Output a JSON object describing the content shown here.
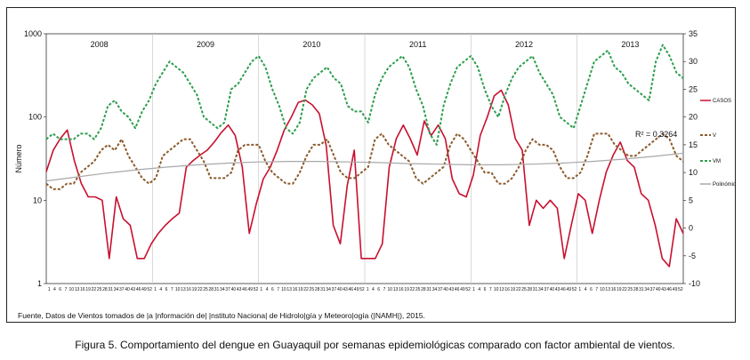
{
  "chart_data": {
    "type": "line",
    "ylabel": "Número",
    "y_left_scale": "log",
    "ylim_left": [
      1,
      1000
    ],
    "left_ticks": [
      "1",
      "10",
      "100",
      "1000"
    ],
    "ylim_right": [
      -10,
      35
    ],
    "right_ticks": [
      "-10",
      "-5",
      "0",
      "5",
      "10",
      "15",
      "20",
      "25",
      "30",
      "35"
    ],
    "years": [
      "2008",
      "2009",
      "2010",
      "2011",
      "2012",
      "2013"
    ],
    "week_ticks": "1 4 6 7 10 13 16 19 22 25 28 31 34 37 40 43 46 49 52",
    "annotation": "R² = 0,3264",
    "legend_placement": "right",
    "grid": false,
    "series": [
      {
        "name": "CASOS",
        "axis": "left",
        "color": "#c8102e",
        "style": "solid",
        "values": [
          22,
          40,
          55,
          70,
          30,
          16,
          11,
          11,
          10,
          2,
          11,
          6,
          5,
          2,
          2,
          3,
          4,
          5,
          6,
          7,
          25,
          30,
          35,
          40,
          50,
          65,
          80,
          60,
          25,
          4,
          9,
          18,
          25,
          40,
          70,
          100,
          150,
          160,
          140,
          110,
          45,
          5,
          3,
          15,
          40,
          2,
          2,
          2,
          3,
          25,
          55,
          80,
          55,
          35,
          90,
          60,
          80,
          55,
          18,
          12,
          11,
          20,
          60,
          100,
          180,
          210,
          140,
          55,
          40,
          5,
          10,
          8,
          10,
          8,
          2,
          5,
          12,
          10,
          4,
          10,
          22,
          35,
          50,
          30,
          25,
          12,
          10,
          5,
          2,
          1.6,
          6,
          4
        ]
      },
      {
        "name": "V",
        "axis": "right",
        "color": "#8b5a2b",
        "style": "dashed",
        "values": [
          8,
          7,
          7,
          8,
          8,
          10,
          11,
          12,
          14,
          15,
          14,
          16,
          13,
          11,
          9,
          8,
          9,
          13,
          14,
          15,
          16,
          16,
          14,
          12,
          9,
          9,
          9,
          10,
          14,
          15,
          15,
          15,
          12,
          10,
          9,
          8,
          8,
          10,
          13,
          15,
          15,
          16,
          13,
          10,
          9,
          9,
          10,
          11,
          16,
          17,
          15,
          14,
          13,
          12,
          9,
          8,
          9,
          10,
          11,
          15,
          17,
          16,
          14,
          12,
          10,
          10,
          8,
          8,
          9,
          11,
          14,
          16,
          15,
          15,
          14,
          11,
          9,
          9,
          10,
          13,
          17,
          17,
          17,
          15,
          14,
          13,
          13,
          14,
          15,
          16,
          17,
          16,
          13,
          12
        ]
      },
      {
        "name": "VM",
        "axis": "right",
        "color": "#2e9e4f",
        "style": "dashed",
        "values": [
          16,
          17,
          16,
          16,
          16,
          17,
          17,
          16,
          18,
          22,
          23,
          21,
          20,
          18,
          21,
          23,
          26,
          28,
          30,
          29,
          28,
          26,
          24,
          20,
          19,
          18,
          19,
          25,
          26,
          28,
          30,
          31,
          29,
          25,
          22,
          18,
          17,
          19,
          25,
          27,
          28,
          29,
          27,
          26,
          22,
          21,
          21,
          19,
          24,
          27,
          29,
          30,
          31,
          29,
          25,
          22,
          17,
          15,
          22,
          26,
          29,
          30,
          31,
          29,
          25,
          22,
          20,
          24,
          27,
          29,
          30,
          31,
          28,
          26,
          24,
          20,
          19,
          18,
          22,
          26,
          30,
          31,
          32,
          29,
          28,
          26,
          25,
          24,
          23,
          30,
          33,
          31,
          28,
          27
        ]
      },
      {
        "name": "Polinómica (V)",
        "axis": "right",
        "color": "#a8a8a8",
        "style": "solid",
        "values": [
          8.5,
          9.2,
          9.9,
          10.5,
          11.0,
          11.4,
          11.7,
          11.9,
          12.0,
          12.0,
          11.9,
          11.8,
          11.6,
          11.5,
          11.4,
          11.4,
          11.5,
          11.7,
          12.0,
          12.4,
          12.9,
          13.5
        ]
      }
    ]
  },
  "source_parts": [
    "Fuente, Datos de Vientos tomados de ",
    "|",
    "a ",
    "|",
    "nformación de",
    "|",
    " ",
    "|",
    "nstituto Naciona",
    "|",
    " de Hidrolo",
    "|",
    "gía y Meteoro",
    "|",
    "ogía (",
    "|",
    "NAMH",
    "|",
    "), 2015."
  ],
  "caption": "Figura 5. Comportamiento del dengue en Guayaquil por semanas epidemiológicas comparado con factor ambiental de vientos."
}
